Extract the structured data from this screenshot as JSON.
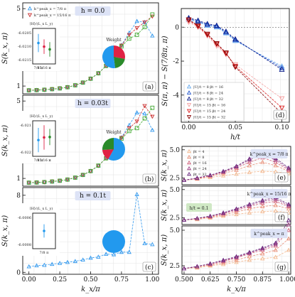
{
  "chart_data": [
    {
      "type": "line",
      "panel": "a",
      "title": "h = 0.0",
      "xlabel": "",
      "ylabel": "S(k_x, π)",
      "xlim": [
        -0.05,
        1.05
      ],
      "ylim": [
        0.6,
        5.3
      ],
      "yticks": [
        1,
        2,
        3,
        4,
        5
      ],
      "x": [
        0.0,
        0.0625,
        0.125,
        0.1875,
        0.25,
        0.3125,
        0.375,
        0.4375,
        0.5,
        0.5625,
        0.625,
        0.6875,
        0.75,
        0.8125,
        0.875,
        0.9375,
        1.0
      ],
      "series": [
        {
          "name": "k^peak_x = 7/8 π",
          "color": "#3399ee",
          "marker": "triangle-up",
          "values": [
            0.78,
            0.79,
            0.81,
            0.84,
            0.88,
            0.94,
            1.04,
            1.18,
            1.38,
            1.66,
            2.04,
            2.55,
            3.12,
            3.75,
            4.35,
            4.3,
            3.6
          ]
        },
        {
          "name": "k^peak_x = 15/16 π",
          "color": "#cc3333",
          "marker": "triangle-down",
          "values": [
            0.78,
            0.79,
            0.81,
            0.84,
            0.88,
            0.94,
            1.04,
            1.18,
            1.38,
            1.66,
            2.04,
            2.55,
            3.1,
            3.65,
            4.0,
            4.3,
            4.6
          ]
        },
        {
          "name": "k^peak_x = π",
          "color": "#44aa33",
          "marker": "square",
          "values": [
            0.78,
            0.79,
            0.81,
            0.84,
            0.88,
            0.94,
            1.04,
            1.18,
            1.38,
            1.66,
            2.04,
            2.55,
            3.05,
            3.45,
            3.65,
            4.05,
            4.7
          ]
        }
      ],
      "inset": {
        "title": "⟨H⟩/(L_x L_y)",
        "categories": [
          "7/8 π",
          "15/16 π",
          "π"
        ],
        "values": [
          -6.02095,
          -6.02115,
          -6.0213
        ],
        "errors": [
          0.0005,
          0.0004,
          0.0004
        ],
        "yticks": [
          "-6.0205",
          "-6.0210",
          "-6.0215"
        ]
      },
      "pie": {
        "title": "Weight",
        "values": [
          0.28,
          0.2,
          0.52
        ],
        "colors": [
          "#e02244",
          "#2a8a2a",
          "#2299ee"
        ]
      }
    },
    {
      "type": "line",
      "panel": "b",
      "title": "h = 0.03t",
      "ylabel": "S(k_x, π)",
      "xlim": [
        -0.05,
        1.05
      ],
      "ylim": [
        0.6,
        5.3
      ],
      "yticks": [
        1,
        2,
        3,
        4,
        5
      ],
      "x": [
        0.0,
        0.0625,
        0.125,
        0.1875,
        0.25,
        0.3125,
        0.375,
        0.4375,
        0.5,
        0.5625,
        0.625,
        0.6875,
        0.75,
        0.8125,
        0.875,
        0.9375,
        1.0
      ],
      "series": [
        {
          "name": "k^peak_x = 7/8 π",
          "color": "#3399ee",
          "marker": "triangle-up",
          "values": [
            0.78,
            0.79,
            0.81,
            0.84,
            0.88,
            0.94,
            1.04,
            1.18,
            1.38,
            1.66,
            2.04,
            2.55,
            3.12,
            3.75,
            4.4,
            4.35,
            3.5
          ]
        },
        {
          "name": "k^peak_x = 15/16 π",
          "color": "#cc3333",
          "marker": "triangle-down",
          "values": [
            0.78,
            0.79,
            0.81,
            0.84,
            0.88,
            0.94,
            1.04,
            1.18,
            1.38,
            1.66,
            2.04,
            2.55,
            3.1,
            3.6,
            3.95,
            4.75,
            4.2
          ]
        },
        {
          "name": "k^peak_x = π",
          "color": "#44aa33",
          "marker": "square",
          "values": [
            0.78,
            0.79,
            0.81,
            0.84,
            0.88,
            0.94,
            1.04,
            1.18,
            1.38,
            1.66,
            2.04,
            2.55,
            3.05,
            3.45,
            3.6,
            4.1,
            4.65
          ]
        }
      ],
      "inset": {
        "title": "⟨H⟩/(L_x L_y)",
        "categories": [
          "7/8 π",
          "15/16 π",
          "π"
        ],
        "values": [
          -6.02175,
          -6.02162,
          -6.0216
        ],
        "errors": [
          0.0006,
          0.0006,
          0.0004
        ],
        "yticks": [
          "-6.021",
          "-6.022"
        ]
      },
      "pie": {
        "title": "Weight",
        "values": [
          0.58,
          0.16,
          0.26
        ],
        "colors": [
          "#2299ee",
          "#e02244",
          "#2a8a2a"
        ]
      }
    },
    {
      "type": "line",
      "panel": "c",
      "title": "h = 0.1t",
      "xlabel": "k_x/π",
      "ylabel": "S(k_x, π)",
      "xlim": [
        -0.05,
        1.05
      ],
      "ylim": [
        -0.2,
        8.8
      ],
      "yticks": [
        0,
        2,
        4,
        6,
        8
      ],
      "xticks": [
        "0.00",
        "0.25",
        "0.50",
        "0.75",
        "1.00"
      ],
      "x": [
        0.0,
        0.0625,
        0.125,
        0.1875,
        0.25,
        0.3125,
        0.375,
        0.4375,
        0.5,
        0.5625,
        0.625,
        0.6875,
        0.75,
        0.8125,
        0.875,
        0.9375,
        1.0
      ],
      "series": [
        {
          "name": "k^peak_x = 7/8 π",
          "color": "#3399ee",
          "marker": "triangle-up",
          "values": [
            0.6,
            0.7,
            0.75,
            0.85,
            0.95,
            1.05,
            1.15,
            1.3,
            1.5,
            1.6,
            1.9,
            1.85,
            2.1,
            2.1,
            8.1,
            3.0,
            2.9
          ]
        }
      ],
      "inset": {
        "title": "⟨H⟩/(L_x L_y)",
        "categories": [
          "7/8 π"
        ],
        "values": [
          -6.0254
        ],
        "errors": [
          0.0003
        ],
        "yticks": [
          "-6.0006",
          "-6.0008"
        ],
        "header": "-6.025"
      },
      "pie": {
        "title": "",
        "values": [
          1.0
        ],
        "colors": [
          "#2299ee"
        ]
      }
    },
    {
      "type": "line",
      "panel": "d",
      "xlabel": "h/t",
      "ylabel": "S(π, π) − S(7/8π, π)",
      "xlim": [
        -0.008,
        0.108
      ],
      "ylim": [
        -5.6,
        1.1
      ],
      "xticks": [
        "0.00",
        "0.05",
        "0.10"
      ],
      "yticks": [
        0,
        -2,
        -4
      ],
      "x": [
        0.0,
        0.01,
        0.02,
        0.03,
        0.04,
        0.05,
        0.1
      ],
      "series": [
        {
          "name": "|U|/t = 8  βt = 16",
          "color": "#66aaee",
          "marker": "triangle-up",
          "values": [
            0.45,
            0.3,
            0.1,
            0.0,
            -0.35,
            -0.8,
            -2.3
          ]
        },
        {
          "name": "|U|/t = 8  βt = 24",
          "color": "#2255cc",
          "marker": "triangle-up",
          "values": [
            0.5,
            0.35,
            0.15,
            0.05,
            -0.3,
            -0.75,
            -2.4
          ]
        },
        {
          "name": "|U|/t = 8  βt = 32",
          "color": "#0a1a88",
          "marker": "triangle-up",
          "values": [
            0.55,
            0.4,
            0.2,
            0.1,
            -0.25,
            -0.7,
            -2.5
          ]
        },
        {
          "name": "|U|/t = 15  βt = 16",
          "color": "#f4a0a0",
          "marker": "triangle-down",
          "values": [
            0.3,
            0.0,
            -0.5,
            -1.1,
            -1.6,
            -2.2,
            -4.2
          ]
        },
        {
          "name": "|U|/t = 15  βt = 24",
          "color": "#dd2222",
          "marker": "triangle-down",
          "values": [
            0.4,
            0.05,
            -0.45,
            -1.0,
            -1.55,
            -2.3,
            -4.75
          ]
        },
        {
          "name": "|U|/t = 15  βt = 32",
          "color": "#880000",
          "marker": "triangle-down",
          "values": [
            0.45,
            0.1,
            -0.4,
            -0.95,
            -1.5,
            -2.35,
            -5.1
          ]
        }
      ]
    },
    {
      "type": "line",
      "panel": "e",
      "annotation": "k^peak_x = 7/8 π",
      "ylabel": "S(k_x, π)",
      "xlim": [
        0.49,
        1.01
      ],
      "ylim": [
        1.9,
        5.3
      ],
      "yticks": [
        "2.5",
        "5.0"
      ],
      "x": [
        0.5,
        0.5625,
        0.625,
        0.6875,
        0.75,
        0.8125,
        0.875,
        0.9375,
        1.0
      ],
      "series": [
        {
          "name": "βt = 4",
          "color": "#f2b88f",
          "marker": "triangle-up",
          "values": [
            2.3,
            2.4,
            2.55,
            2.7,
            2.85,
            3.0,
            3.1,
            3.05,
            2.9
          ]
        },
        {
          "name": "βt = 8",
          "color": "#e8907a",
          "marker": "triangle-up",
          "values": [
            2.3,
            2.45,
            2.65,
            2.9,
            3.2,
            3.6,
            3.9,
            3.6,
            3.1
          ]
        },
        {
          "name": "βt = 16",
          "color": "#d0607a",
          "marker": "triangle-up",
          "values": [
            2.3,
            2.45,
            2.7,
            3.0,
            3.4,
            3.9,
            4.3,
            3.9,
            3.2
          ]
        },
        {
          "name": "βt = 24",
          "color": "#a04488",
          "marker": "triangle-up",
          "values": [
            2.3,
            2.5,
            2.75,
            3.05,
            3.5,
            4.1,
            4.55,
            4.1,
            3.3
          ]
        },
        {
          "name": "βt = 32",
          "color": "#6a2a80",
          "marker": "triangle-up",
          "values": [
            2.3,
            2.5,
            2.75,
            3.1,
            3.55,
            4.2,
            4.75,
            4.25,
            3.4
          ]
        }
      ]
    },
    {
      "type": "line",
      "panel": "f",
      "annotation": "k^peak_x = 15/16 π",
      "label": "h/t = 0.1",
      "ylabel": "S(k_x, π)",
      "xlim": [
        0.49,
        1.01
      ],
      "ylim": [
        1.9,
        5.3
      ],
      "yticks": [
        "2.5",
        "5.0"
      ],
      "x": [
        0.5,
        0.5625,
        0.625,
        0.6875,
        0.75,
        0.8125,
        0.875,
        0.9375,
        1.0
      ],
      "series": [
        {
          "name": "βt = 4",
          "color": "#f2b88f",
          "marker": "triangle-up",
          "values": [
            2.3,
            2.35,
            2.5,
            2.65,
            2.8,
            2.95,
            3.05,
            3.1,
            2.95
          ]
        },
        {
          "name": "βt = 8",
          "color": "#e8907a",
          "marker": "triangle-up",
          "values": [
            2.3,
            2.4,
            2.55,
            2.75,
            3.0,
            3.3,
            3.5,
            3.6,
            3.3
          ]
        },
        {
          "name": "βt = 16",
          "color": "#d0607a",
          "marker": "triangle-up",
          "values": [
            2.3,
            2.45,
            2.6,
            2.85,
            3.15,
            3.5,
            3.8,
            3.95,
            3.5
          ]
        },
        {
          "name": "βt = 24",
          "color": "#a04488",
          "marker": "triangle-up",
          "values": [
            2.3,
            2.45,
            2.65,
            2.9,
            3.25,
            3.6,
            3.95,
            4.15,
            3.6
          ]
        },
        {
          "name": "βt = 32",
          "color": "#6a2a80",
          "marker": "triangle-up",
          "values": [
            2.3,
            2.45,
            2.65,
            2.95,
            3.3,
            3.7,
            4.05,
            4.3,
            3.7
          ]
        }
      ]
    },
    {
      "type": "line",
      "panel": "g",
      "annotation": "k^peak_x = π",
      "xlabel": "k_x/π",
      "ylabel": "S(k_x, π)",
      "xlim": [
        0.49,
        1.01
      ],
      "ylim": [
        1.9,
        5.3
      ],
      "yticks": [
        "2.5",
        "5.0"
      ],
      "xticks": [
        "0.500",
        "0.625",
        "0.750",
        "0.875",
        "1.000"
      ],
      "x": [
        0.5,
        0.5625,
        0.625,
        0.6875,
        0.75,
        0.8125,
        0.875,
        0.9375,
        1.0
      ],
      "series": [
        {
          "name": "βt = 4",
          "color": "#f2b88f",
          "marker": "triangle-up",
          "values": [
            2.3,
            2.35,
            2.5,
            2.6,
            2.75,
            2.9,
            3.0,
            3.1,
            3.6
          ]
        },
        {
          "name": "βt = 8",
          "color": "#e8907a",
          "marker": "triangle-up",
          "values": [
            2.3,
            2.4,
            2.55,
            2.7,
            2.9,
            3.15,
            3.35,
            3.6,
            4.4
          ]
        },
        {
          "name": "βt = 16",
          "color": "#d0607a",
          "marker": "triangle-up",
          "values": [
            2.3,
            2.45,
            2.6,
            2.8,
            3.05,
            3.35,
            3.6,
            3.9,
            5.0
          ]
        },
        {
          "name": "βt = 24",
          "color": "#a04488",
          "marker": "triangle-up",
          "values": [
            2.3,
            2.45,
            2.65,
            2.85,
            3.1,
            3.4,
            3.7,
            4.0,
            5.4
          ]
        },
        {
          "name": "βt = 32",
          "color": "#6a2a80",
          "marker": "triangle-up",
          "values": [
            2.3,
            2.45,
            2.65,
            2.9,
            3.15,
            3.45,
            3.75,
            4.1,
            5.7
          ]
        }
      ]
    }
  ],
  "panel_labels": {
    "a": "(a)",
    "b": "(b)",
    "c": "(c)",
    "d": "(d)",
    "e": "(e)",
    "f": "(f)",
    "g": "(g)"
  }
}
